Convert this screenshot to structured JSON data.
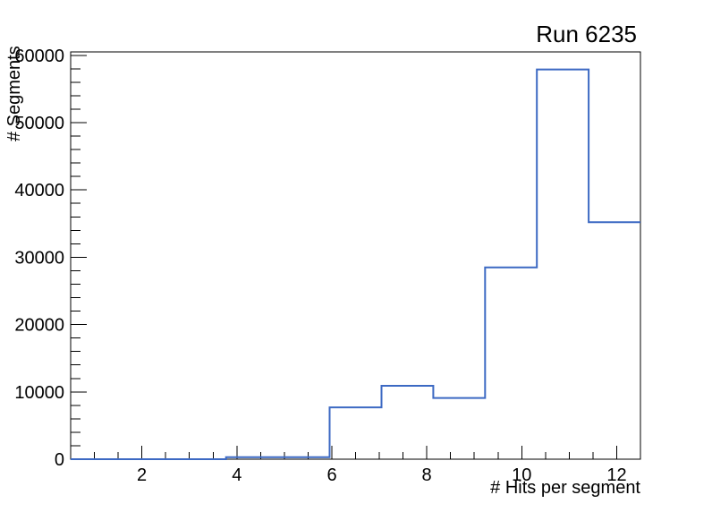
{
  "chart_data": {
    "type": "bar",
    "subtype": "step-histogram",
    "title": "Run 6235",
    "xlabel": "# Hits per segment",
    "ylabel": "# Segments",
    "xlim": [
      0.5,
      12.5
    ],
    "ylim": [
      0,
      60500
    ],
    "bin_edges": [
      0.5,
      1.5909,
      2.6818,
      3.7727,
      4.8636,
      5.9545,
      7.0455,
      8.1364,
      9.2273,
      10.3182,
      11.4091,
      12.5
    ],
    "values": [
      0,
      0,
      0,
      300,
      300,
      7700,
      10900,
      9100,
      28500,
      57900,
      35200
    ],
    "x_major_ticks": [
      2,
      4,
      6,
      8,
      10,
      12
    ],
    "x_minor_step": 0.5,
    "y_major_ticks": [
      0,
      10000,
      20000,
      30000,
      40000,
      50000,
      60000
    ],
    "y_minor_step": 2000,
    "line_color": "#3c69c3",
    "frame_color": "#000000",
    "background": "#ffffff",
    "grid": false,
    "legend": null
  }
}
